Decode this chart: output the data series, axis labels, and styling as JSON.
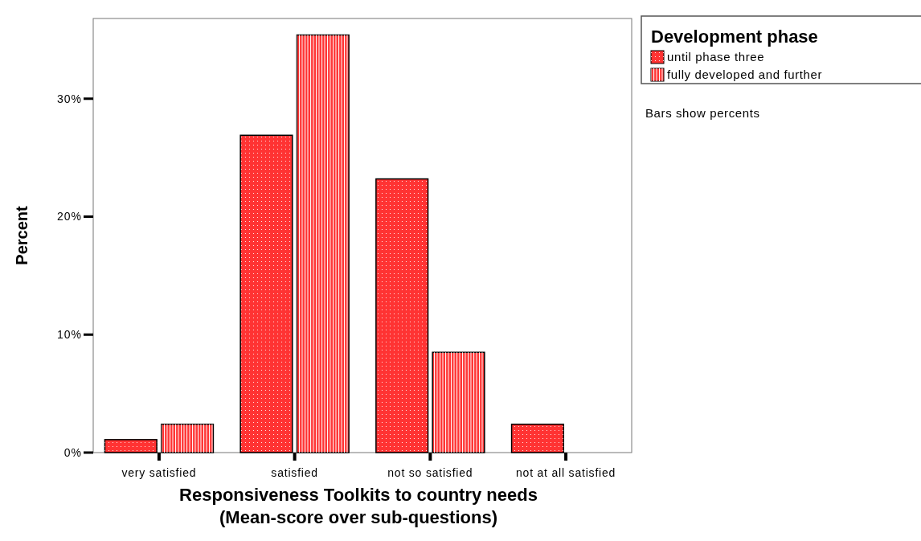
{
  "chart_data": {
    "type": "bar",
    "xlabel": "Responsiveness Toolkits to country needs\n(Mean-score over sub-questions)",
    "ylabel": "Percent",
    "legend_title": "Development phase",
    "legend": "top right",
    "grid": false,
    "categories": [
      "very satisfied",
      "satisfied",
      "not so satisfied",
      "not at all satisfied"
    ],
    "series": [
      {
        "name": "until phase three",
        "color": "#ff3333",
        "values": [
          1.1,
          26.9,
          23.2,
          2.4
        ]
      },
      {
        "name": "fully developed and further",
        "color": "#ff3333",
        "values": [
          2.4,
          35.4,
          8.5,
          null
        ]
      }
    ],
    "ylim": [
      0,
      36.8
    ],
    "yticks": [
      {
        "value": 0,
        "label": "0%"
      },
      {
        "value": 10,
        "label": "10%"
      },
      {
        "value": 20,
        "label": "20%"
      },
      {
        "value": 30,
        "label": "30%"
      }
    ],
    "annotations": [
      "Bars show percents"
    ]
  }
}
